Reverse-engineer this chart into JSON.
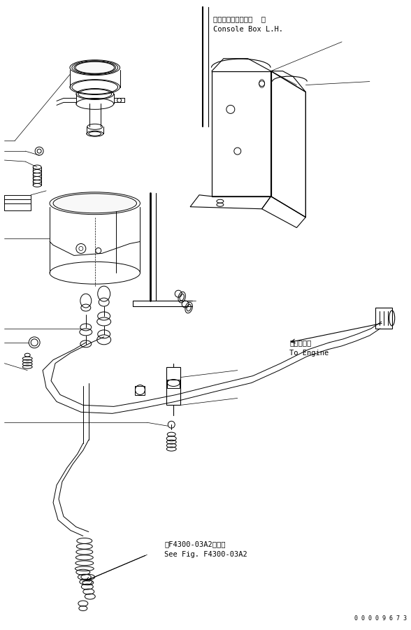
{
  "bg_color": "#ffffff",
  "line_color": "#000000",
  "fig_width": 5.88,
  "fig_height": 9.01,
  "dpi": 100,
  "ann_console_jp": "コンソールボックス  左",
  "ann_console_en": "Console Box L.H.",
  "ann_engine_jp": "エンジンへ",
  "ann_engine_en": "To Engine",
  "ann_fig_jp": "第F4300-03A2図参照",
  "ann_fig_en": "See Fig. F4300-03A2",
  "ann_id": "0 0 0 0 9 6 7 3"
}
